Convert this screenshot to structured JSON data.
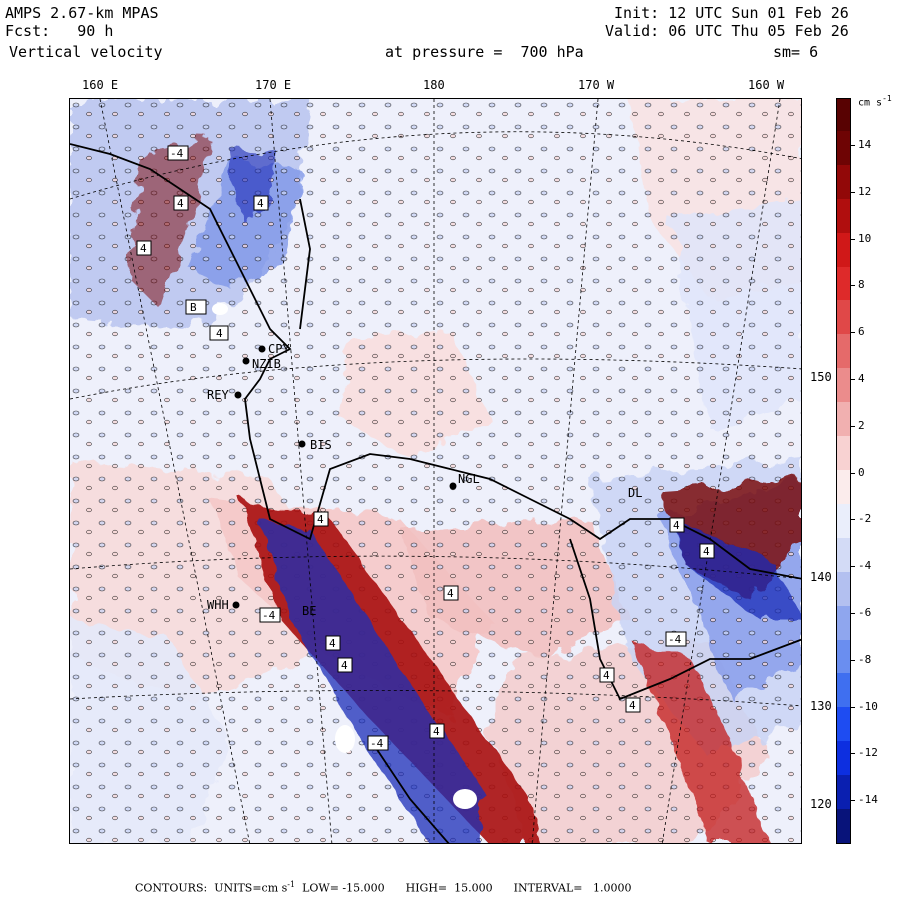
{
  "header": {
    "model": "AMPS 2.67-km MPAS",
    "forecast": "Fcst:   90 h",
    "field": "Vertical velocity",
    "init": "Init: 12 UTC Sun 01 Feb 26",
    "valid": "Valid: 06 UTC Thu 05 Feb 26",
    "pressure": "at pressure =  700 hPa",
    "smoothing": "sm= 6"
  },
  "longitude_labels": [
    "160 E",
    "170 E",
    "180",
    "170 W",
    "160 W"
  ],
  "latitude_labels": [
    "150 W",
    "140 W",
    "130 W",
    "120 W"
  ],
  "colorbar": {
    "units_label": "cm s",
    "units_exp": "-1",
    "tick_labels": [
      "14",
      "12",
      "10",
      "8",
      "6",
      "4",
      "2",
      "0",
      "-2",
      "-4",
      "-6",
      "-8",
      "-10",
      "-12",
      "-14"
    ],
    "colors": [
      "#08137a",
      "#0a1fb0",
      "#0d2fe0",
      "#1e4cf2",
      "#3f6ff0",
      "#6a8ef0",
      "#8fa6ee",
      "#b3c0f0",
      "#d3dbf6",
      "#eaeefb",
      "#fbecec",
      "#f8d2d2",
      "#f1b0b0",
      "#eb8c8c",
      "#e56a6a",
      "#e04848",
      "#de2a2a",
      "#d01818",
      "#b00e0e",
      "#920808",
      "#6e0404",
      "#580202"
    ]
  },
  "stations": [
    "CPY",
    "NZIB",
    "REY",
    "BIS",
    "NGL",
    "DL",
    "WHH",
    "BE"
  ],
  "field_labels": [
    "4",
    "4",
    "4",
    "B",
    "4",
    "4",
    "-4",
    "4",
    "4",
    "-4",
    "4",
    "4",
    "4",
    "4",
    "4",
    "-4",
    "4",
    "-4"
  ],
  "footer": {
    "contours": "CONTOURS:  UNITS=cm s",
    "units_exp": "-1",
    "low": "LOW= -15.000",
    "high": "HIGH=  15.000",
    "interval": "INTERVAL=   1.0000"
  }
}
